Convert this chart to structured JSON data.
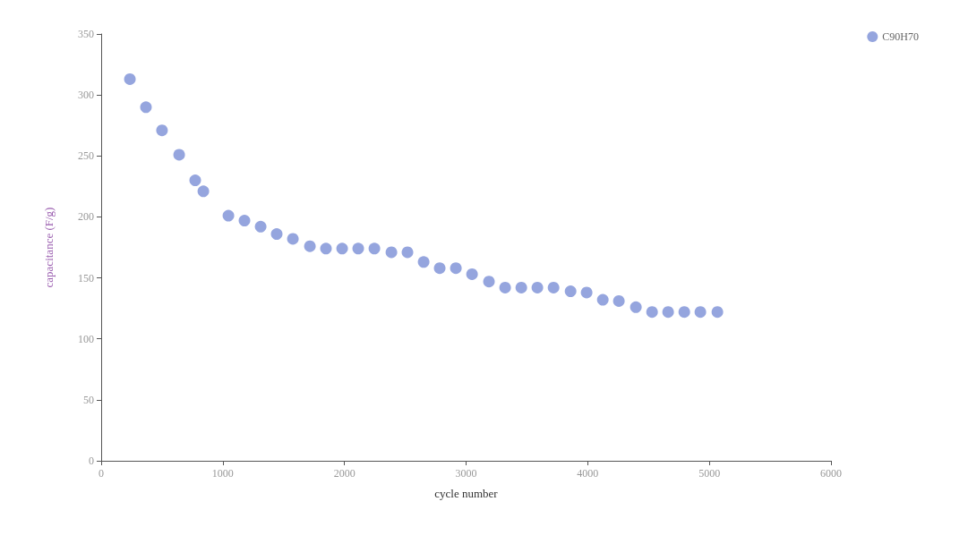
{
  "chart_data": {
    "type": "scatter",
    "xlabel": "cycle number",
    "ylabel": "capacitance (F/g)",
    "xlim": [
      0,
      6000
    ],
    "xticks": [
      0,
      1000,
      2000,
      3000,
      4000,
      5000,
      6000
    ],
    "ylim": [
      0,
      350
    ],
    "yticks": [
      0,
      50,
      100,
      150,
      200,
      250,
      300,
      350
    ],
    "grid": false,
    "legend": "top right",
    "marker": "circle",
    "series": [
      {
        "name": "C90H70",
        "color": "#7b8fd6",
        "x": [
          236,
          368,
          500,
          641,
          773,
          840,
          1046,
          1178,
          1311,
          1443,
          1576,
          1716,
          1848,
          1981,
          2113,
          2246,
          2386,
          2518,
          2651,
          2783,
          2916,
          3049,
          3188,
          3321,
          3454,
          3586,
          3719,
          3859,
          3991,
          4124,
          4256,
          4396,
          4529,
          4661,
          4794,
          4926,
          5066
        ],
        "values": [
          313,
          290,
          271,
          251,
          230,
          221,
          201,
          197,
          192,
          186,
          182,
          176,
          174,
          174,
          174,
          174,
          171,
          171,
          163,
          158,
          158,
          153,
          147,
          142,
          142,
          142,
          142,
          139,
          138,
          132,
          131,
          126,
          122,
          122,
          122,
          122,
          122
        ]
      }
    ]
  }
}
